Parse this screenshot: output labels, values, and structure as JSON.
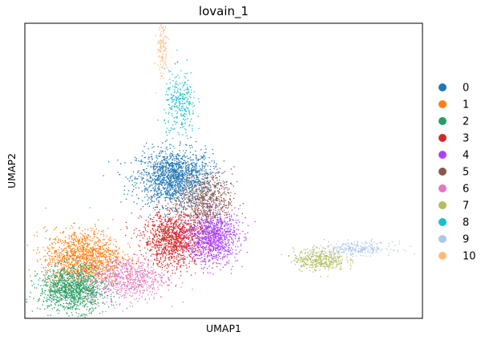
{
  "chart_data": {
    "type": "scatter",
    "title": "lovain_1",
    "xlabel": "UMAP1",
    "ylabel": "UMAP2",
    "xticks": [],
    "yticks": [],
    "grid": false,
    "legend_position": "right",
    "series": [
      {
        "name": "0",
        "color": "#1f77b4",
        "clusters": [
          {
            "x": 0.0,
            "y": 2.4,
            "sx": 0.95,
            "sy": 0.75,
            "n": 1500
          }
        ]
      },
      {
        "name": "1",
        "color": "#ff7f0e",
        "clusters": [
          {
            "x": -4.6,
            "y": -1.9,
            "sx": 0.95,
            "sy": 0.75,
            "n": 1300
          }
        ]
      },
      {
        "name": "2",
        "color": "#279e68",
        "clusters": [
          {
            "x": -5.1,
            "y": -3.6,
            "sx": 0.85,
            "sy": 0.6,
            "n": 1200
          }
        ]
      },
      {
        "name": "3",
        "color": "#d62728",
        "clusters": [
          {
            "x": 0.0,
            "y": -0.9,
            "sx": 0.8,
            "sy": 0.75,
            "n": 1200
          }
        ]
      },
      {
        "name": "4",
        "color": "#aa40fc",
        "clusters": [
          {
            "x": 1.9,
            "y": -0.8,
            "sx": 0.65,
            "sy": 0.7,
            "n": 1000
          }
        ]
      },
      {
        "name": "5",
        "color": "#8c564b",
        "clusters": [
          {
            "x": 1.6,
            "y": 1.2,
            "sx": 0.65,
            "sy": 0.7,
            "n": 600
          }
        ]
      },
      {
        "name": "6",
        "color": "#e377c2",
        "clusters": [
          {
            "x": -2.4,
            "y": -3.0,
            "sx": 1.0,
            "sy": 0.6,
            "n": 700
          }
        ]
      },
      {
        "name": "7",
        "color": "#b5bd61",
        "clusters": [
          {
            "x": 7.3,
            "y": -2.0,
            "sx": 0.65,
            "sy": 0.3,
            "n": 400
          }
        ]
      },
      {
        "name": "8",
        "color": "#17becf",
        "clusters": [
          {
            "x": 0.3,
            "y": 6.3,
            "sx": 0.4,
            "sy": 0.9,
            "n": 300
          }
        ]
      },
      {
        "name": "9",
        "color": "#aec7e8",
        "clusters": [
          {
            "x": 9.2,
            "y": -1.4,
            "sx": 0.9,
            "sy": 0.18,
            "n": 250
          }
        ]
      },
      {
        "name": "10",
        "color": "#ffbb78",
        "clusters": [
          {
            "x": -0.6,
            "y": 9.4,
            "sx": 0.14,
            "sy": 0.9,
            "n": 130
          }
        ]
      }
    ],
    "xlim": [
      -7.5,
      12.5
    ],
    "ylim": [
      -5.2,
      10.7
    ]
  }
}
